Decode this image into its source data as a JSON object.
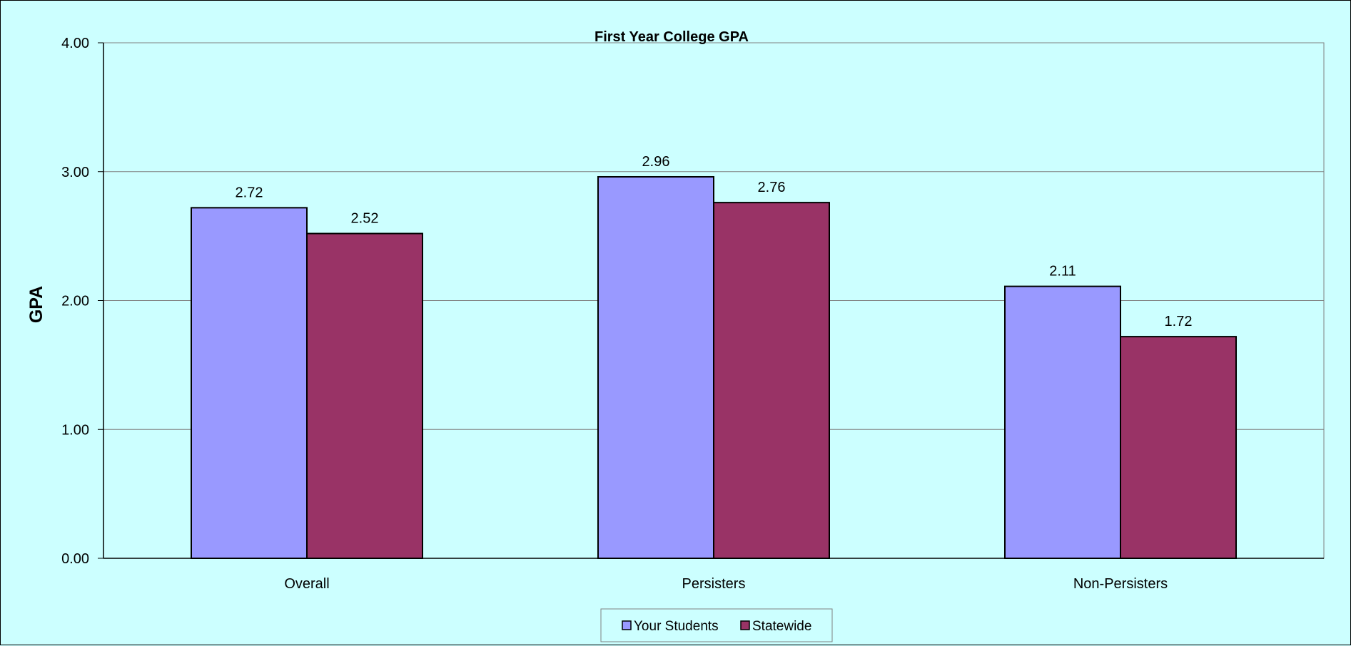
{
  "chart_data": {
    "type": "bar",
    "title": "First Year College GPA",
    "xlabel": "",
    "ylabel": "GPA",
    "ylim": [
      0,
      4
    ],
    "yticks": [
      "0.00",
      "1.00",
      "2.00",
      "3.00",
      "4.00"
    ],
    "grid": true,
    "legend_position": "bottom",
    "categories": [
      "Overall",
      "Persisters",
      "Non-Persisters"
    ],
    "series": [
      {
        "name": "Your Students",
        "values": [
          2.72,
          2.96,
          2.11
        ],
        "labels": [
          "2.72",
          "2.96",
          "2.11"
        ],
        "color": "#9999ff"
      },
      {
        "name": "Statewide",
        "values": [
          2.52,
          2.76,
          1.72
        ],
        "labels": [
          "2.52",
          "2.76",
          "1.72"
        ],
        "color": "#993366"
      }
    ],
    "background_color": "#ccffff"
  }
}
